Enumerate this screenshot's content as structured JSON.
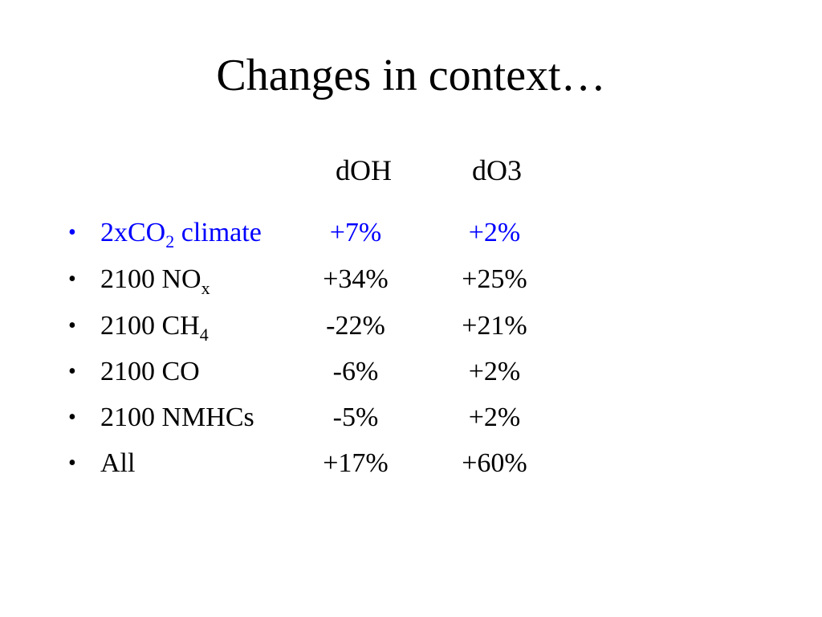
{
  "slide": {
    "title": "Changes in context…"
  },
  "columns": [
    "dOH",
    "dO3"
  ],
  "bullet_symbol": "•",
  "rows": [
    {
      "label_main": "2xCO",
      "label_sub": "2",
      "label_tail": " climate",
      "doh": "+7%",
      "do3": "+2%",
      "color": "#0000ff"
    },
    {
      "label_main": "2100 NO",
      "label_sub": "x",
      "label_tail": "",
      "doh": "+34%",
      "do3": "+25%",
      "color": "#000000"
    },
    {
      "label_main": "2100 CH",
      "label_sub": "4",
      "label_tail": "",
      "doh": "-22%",
      "do3": "+21%",
      "color": "#000000"
    },
    {
      "label_main": "2100 CO",
      "label_sub": "",
      "label_tail": "",
      "doh": "-6%",
      "do3": "+2%",
      "color": "#000000"
    },
    {
      "label_main": "2100 NMHCs",
      "label_sub": "",
      "label_tail": "",
      "doh": "-5%",
      "do3": "+2%",
      "color": "#000000"
    },
    {
      "label_main": "All",
      "label_sub": "",
      "label_tail": "",
      "doh": "+17%",
      "do3": "+60%",
      "color": "#000000"
    }
  ]
}
